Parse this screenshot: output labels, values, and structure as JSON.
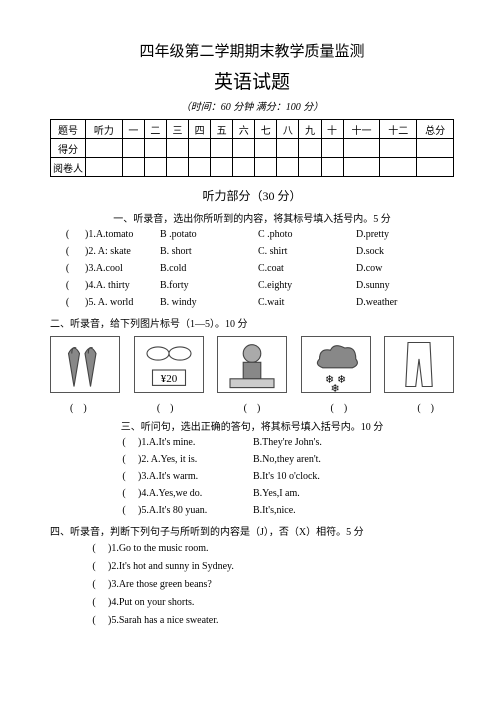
{
  "header": {
    "title1": "四年级第二学期期末教学质量监测",
    "title2": "英语试题",
    "subtitle": "（时间：60 分钟  满分：100 分）"
  },
  "score_table": {
    "cols": [
      "题号",
      "听力",
      "一",
      "二",
      "三",
      "四",
      "五",
      "六",
      "七",
      "八",
      "九",
      "十",
      "十一",
      "十二",
      "总分"
    ],
    "rows": [
      "得分",
      "阅卷人"
    ]
  },
  "listening_header": "听力部分（30 分）",
  "sec1": {
    "instruction": "一、听录音，选出你所听到的内容，将其标号填入括号内。5 分",
    "items": [
      {
        "n": ")1.A.tomato",
        "b": "B .potato",
        "c": "C .photo",
        "d": "D.pretty"
      },
      {
        "n": ")2. A: skate",
        "b": "B. short",
        "c": "C. shirt",
        "d": "D.sock"
      },
      {
        "n": ")3.A.cool",
        "b": "B.cold",
        "c": "C.coat",
        "d": "D.cow"
      },
      {
        "n": ")4.A. thirty",
        "b": "B.forty",
        "c": "C.eighty",
        "d": "D.sunny"
      },
      {
        "n": ")5. A. world",
        "b": "B. windy",
        "c": "C.wait",
        "d": "D.weather"
      }
    ]
  },
  "sec2": {
    "instruction": "二、听录音，给下列图片标号（1—5）。10 分"
  },
  "sec3": {
    "instruction": "三、听问句，选出正确的答句，将其标号填入括号内。10 分",
    "items": [
      {
        "n": ")1.A.It's mine.",
        "b": "B.They're John's."
      },
      {
        "n": ")2. A.Yes, it is.",
        "b": "B.No,they aren't."
      },
      {
        "n": ")3.A.It's warm.",
        "b": "B.It's 10 o'clock."
      },
      {
        "n": ")4.A.Yes,we do.",
        "b": "B.Yes,I am."
      },
      {
        "n": ")5.A.It's 80 yuan.",
        "b": "B.It's,nice."
      }
    ]
  },
  "sec4": {
    "instruction": "四、听录音，判断下列句子与所听到的内容是（J），否（X）相符。5 分",
    "items": [
      ")1.Go to the music room.",
      ")2.It's hot and sunny in Sydney.",
      ")3.Are those green beans?",
      ")4.Put on your shorts.",
      ")5.Sarah has a nice sweater."
    ]
  }
}
